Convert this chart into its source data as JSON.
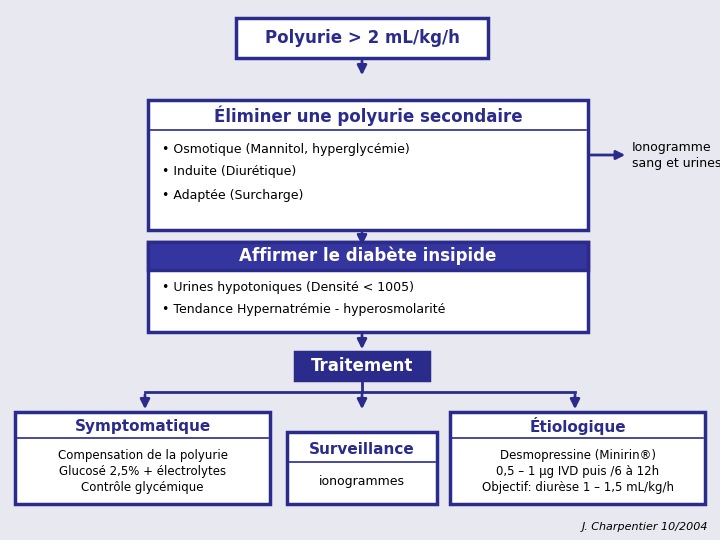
{
  "bg_color": "#e8e8f0",
  "border_color": "#2b2b8c",
  "fill_dark": "#2b2b8c",
  "fill_white": "#ffffff",
  "text_dark": "#2b2b8c",
  "text_white": "#ffffff",
  "text_black": "#000000",
  "box1_title": "Polyurie > 2 mL/kg/h",
  "box2_title": "Éliminer une polyurie secondaire",
  "box2_bullets": [
    "• Osmotique (Mannitol, hyperglycémie)",
    "• Induite (Diurétique)",
    "• Adaptée (Surcharge)"
  ],
  "ionogramme_text": "Ionogramme\nsang et urines",
  "box3_title": "Affirmer le diabète insipide",
  "box3_bullets": [
    "• Urines hypotoniques (Densité < 1005)",
    "• Tendance Hypernatrémie - hyperosmolarité"
  ],
  "box4_title": "Traitement",
  "box5_title": "Symptomatique",
  "box5_bullets": [
    "Compensation de la polyurie",
    "Glucosé 2,5% + électrolytes",
    "Contrôle glycémique"
  ],
  "box6_title": "Surveillance",
  "box6_sub": "ionogrammes",
  "box7_title": "Étiologique",
  "box7_bullets": [
    "Desmopressine (Minirin®)",
    "0,5 – 1 μg IVD puis /6 à 12h",
    "Objectif: diurèse 1 – 1,5 mL/kg/h"
  ],
  "footer": "J. Charpentier 10/2004"
}
